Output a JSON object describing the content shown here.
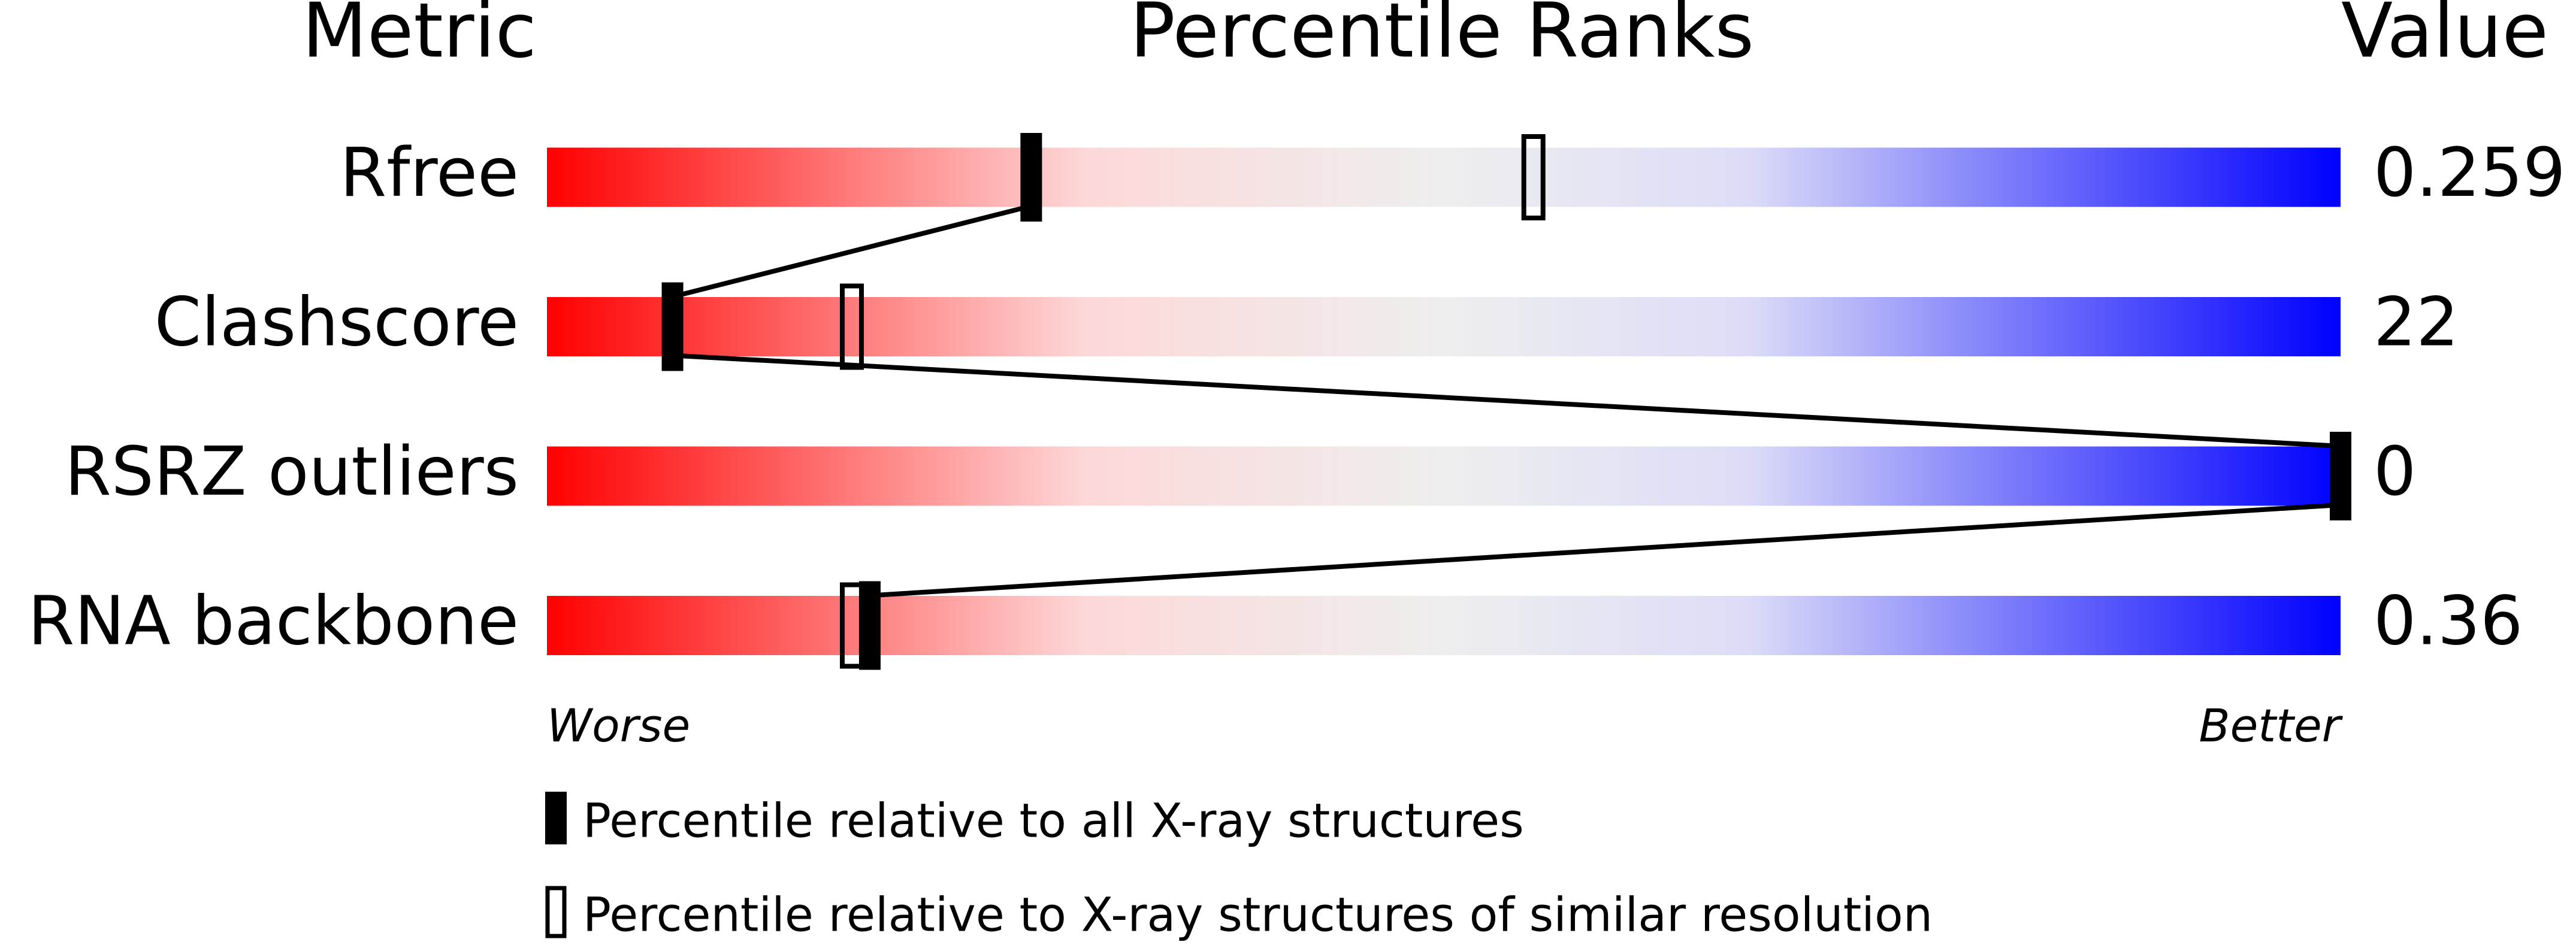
{
  "chart_data": {
    "type": "percentile-slider",
    "title": "Percentile Ranks",
    "metric_header": "Metric",
    "value_header": "Value",
    "categories": [
      "Rfree",
      "Clashscore",
      "RSRZ outliers",
      "RNA backbone"
    ],
    "metric_values": [
      "0.259",
      "22",
      "0",
      "0.36"
    ],
    "xlim": [
      0,
      100
    ],
    "x_low_label": "Worse",
    "x_high_label": "Better",
    "series": [
      {
        "name": "Percentile relative to all X-ray structures",
        "style": "filled",
        "color": "#000000",
        "values": [
          27,
          7,
          100,
          18
        ]
      },
      {
        "name": "Percentile relative to X-ray structures of similar resolution",
        "style": "open",
        "color": "#000000",
        "values": [
          55,
          17,
          null,
          17
        ]
      }
    ]
  }
}
